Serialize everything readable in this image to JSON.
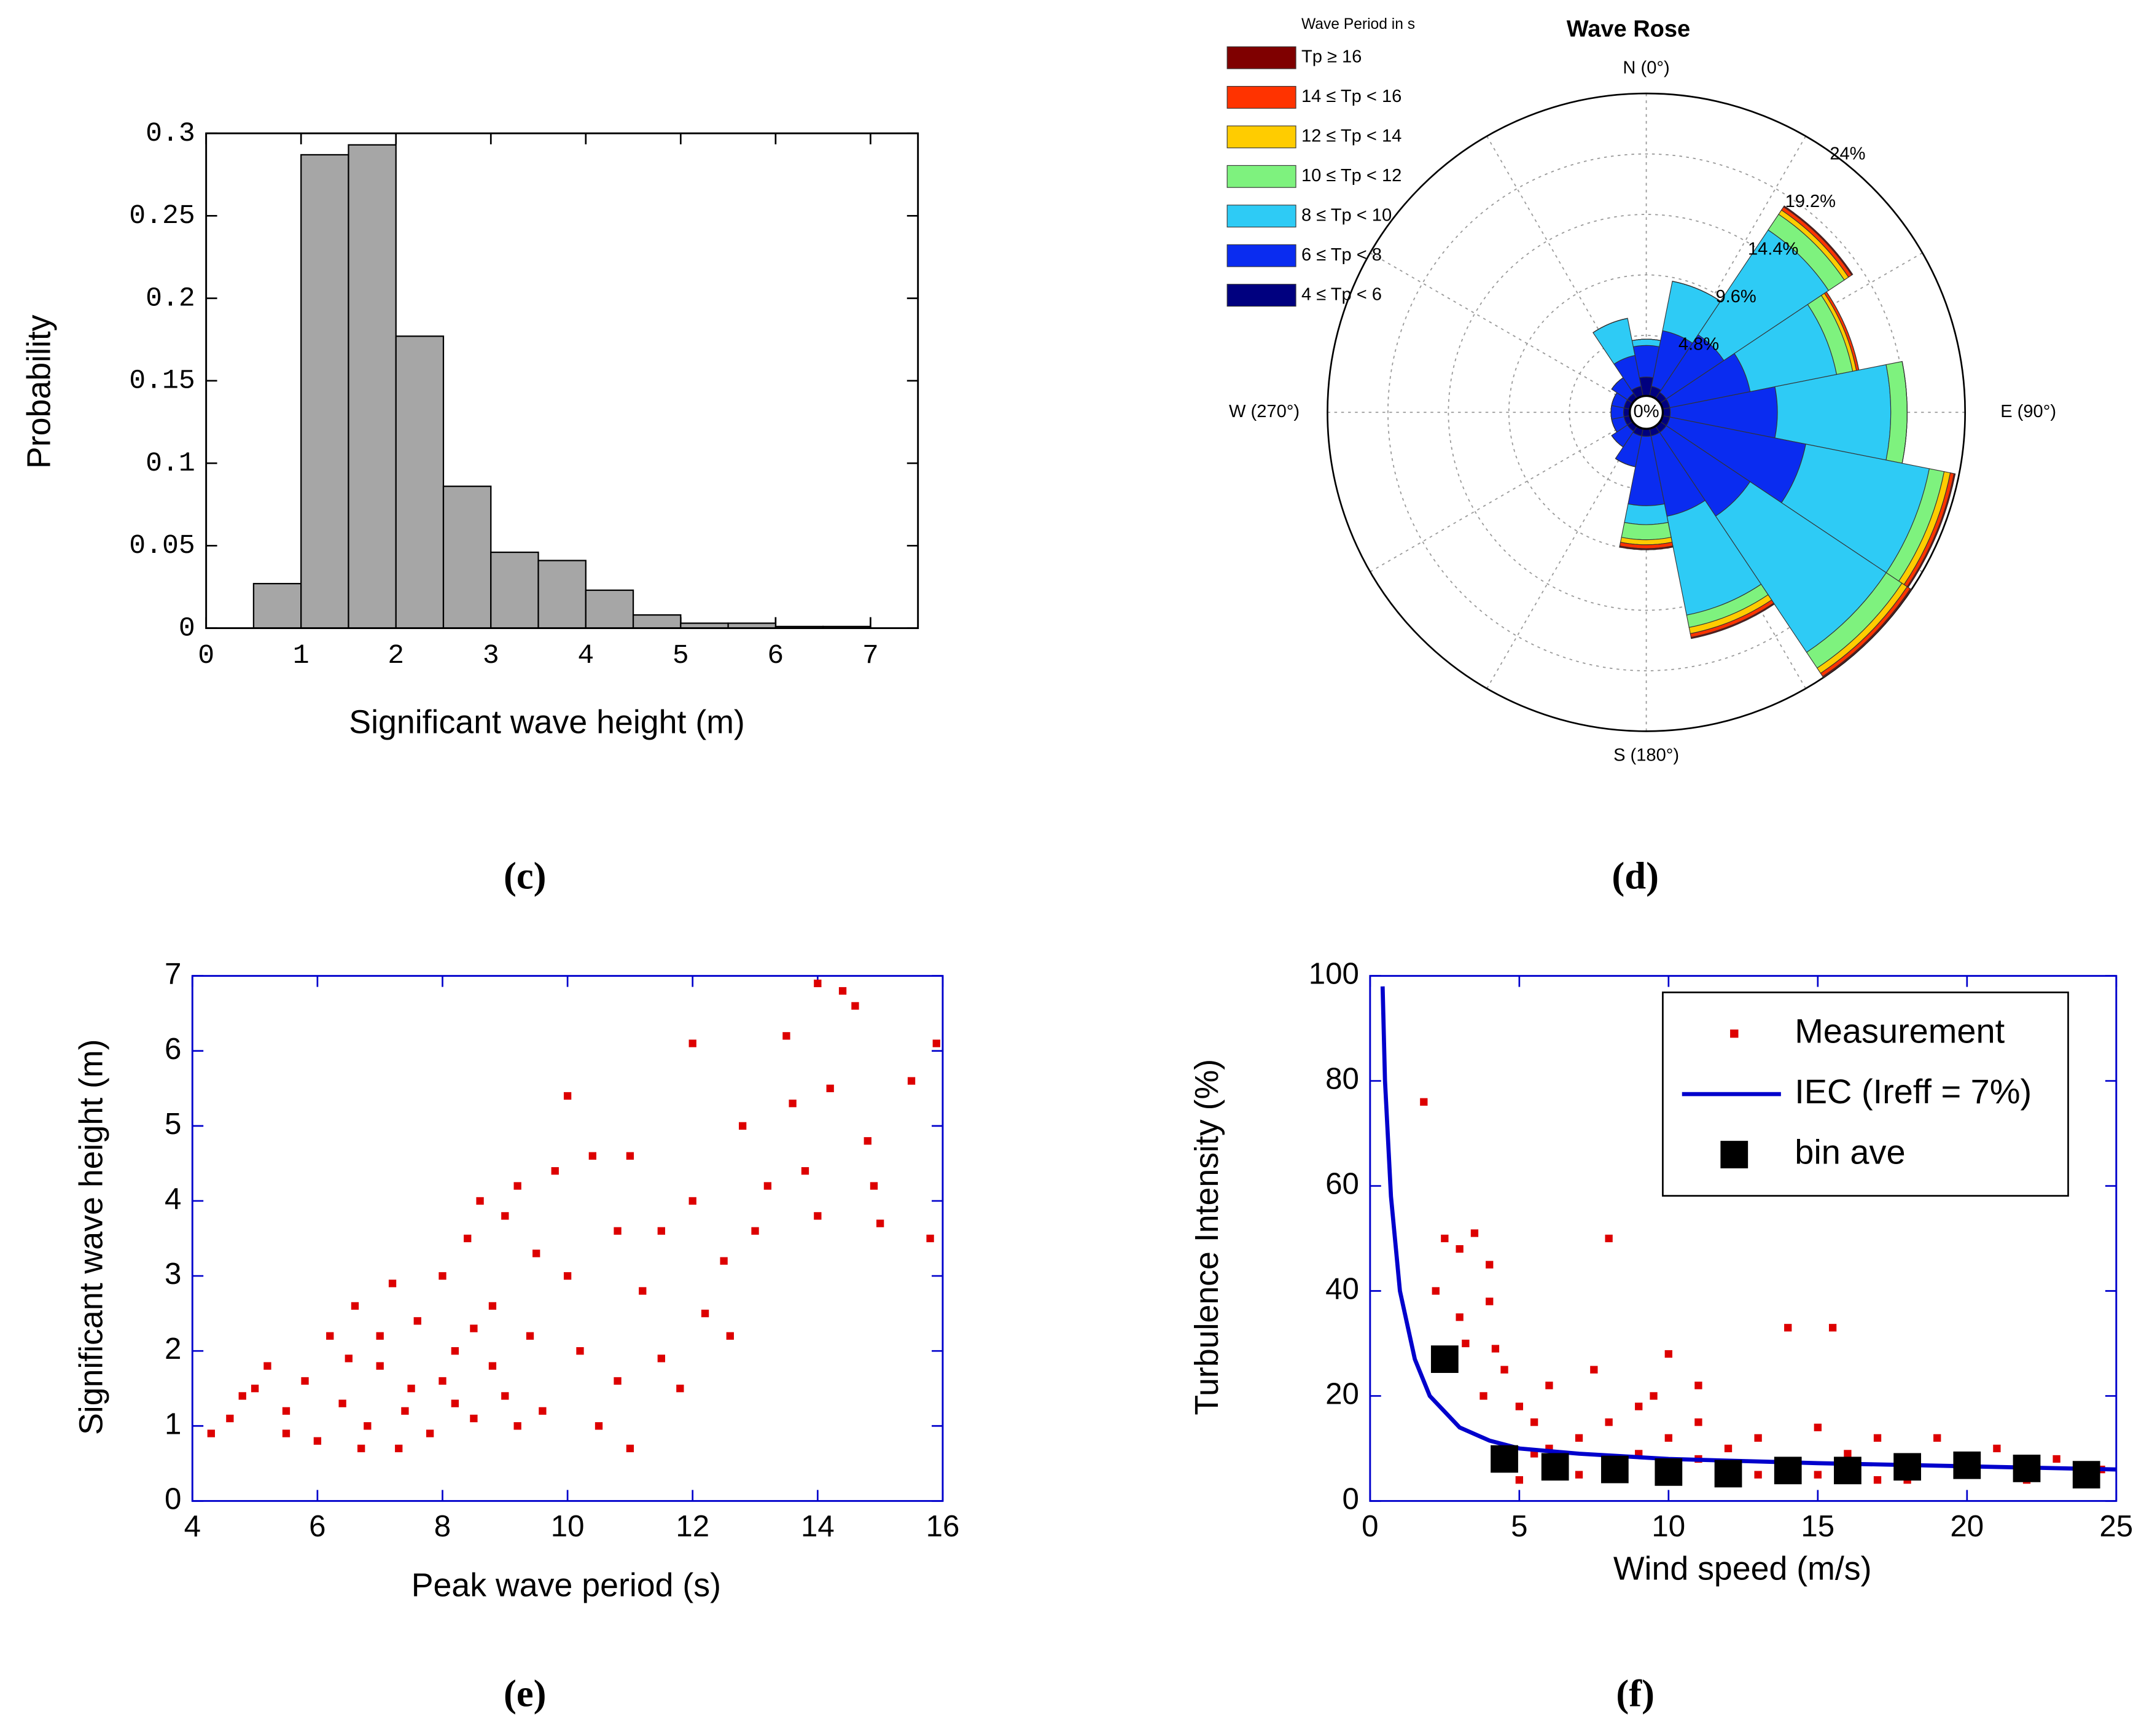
{
  "chart_data": [
    {
      "type": "histogram",
      "caption": "(c)",
      "x_label": "Significant wave height (m)",
      "y_label": "Probability",
      "bins": [
        0.5,
        1,
        1.5,
        2,
        2.5,
        3,
        3.5,
        4,
        4.5,
        5,
        5.5,
        6,
        6.5,
        7
      ],
      "values": [
        0.027,
        0.287,
        0.293,
        0.177,
        0.086,
        0.046,
        0.041,
        0.023,
        0.008,
        0.003,
        0.003,
        0.001,
        0.001
      ],
      "color": "#a6a6a6",
      "xlim": [
        0,
        7.5
      ],
      "ylim": [
        0,
        0.3
      ],
      "xticks": [
        0,
        1,
        2,
        3,
        4,
        5,
        6,
        7
      ],
      "yticks": [
        0,
        0.05,
        0.1,
        0.15,
        0.2,
        0.25,
        0.3
      ]
    },
    {
      "type": "polar_bar",
      "caption": "(d)",
      "title": "Wave Rose",
      "legend_title": "Wave Period in s",
      "directions": [
        0,
        22.5,
        45,
        67.5,
        90,
        112.5,
        135,
        157.5,
        180,
        202.5,
        225,
        247.5,
        270,
        292.5,
        315,
        337.5
      ],
      "rlim": [
        0,
        24
      ],
      "rticks": [
        {
          "value": 0,
          "label": "0%"
        },
        {
          "value": 4.8,
          "label": "4.8%"
        },
        {
          "value": 9.6,
          "label": "9.6%"
        },
        {
          "value": 14.4,
          "label": "14.4%"
        },
        {
          "value": 19.2,
          "label": "19.2%"
        },
        {
          "value": 24,
          "label": "24%"
        }
      ],
      "thetaticks": [
        {
          "value": 0,
          "label": "N (0°)"
        },
        {
          "value": 90,
          "label": "E (90°)"
        },
        {
          "value": 180,
          "label": "S (180°)"
        },
        {
          "value": 270,
          "label": "W (270°)"
        }
      ],
      "series": [
        {
          "name": "4 ≤ Tp < 6",
          "color": "#00007f",
          "values": [
            1.5,
            0.8,
            0.6,
            0.6,
            0.6,
            0.6,
            0.6,
            0.6,
            0.6,
            0.6,
            0.5,
            0.5,
            0.5,
            0.5,
            0.5,
            0.8
          ]
        },
        {
          "name": "6 ≤ Tp < 8",
          "color": "#0a2cf0",
          "values": [
            2.5,
            4.5,
            5.5,
            6.5,
            8.5,
            11,
            8,
            6.5,
            5.5,
            2.5,
            1.5,
            1,
            1,
            1,
            1.5,
            2.5
          ]
        },
        {
          "name": "8 ≤ Tp < 10",
          "color": "#2ecbf5",
          "values": [
            0.5,
            4,
            10,
            7,
            9,
            10,
            13,
            8,
            1.5,
            0,
            0,
            0,
            0,
            0,
            0,
            3
          ]
        },
        {
          "name": "10 ≤ Tp < 12",
          "color": "#7ef27e",
          "values": [
            0,
            0,
            1.5,
            1.3,
            1.3,
            1.2,
            1.5,
            1,
            1.2,
            0,
            0,
            0,
            0,
            0,
            0,
            0
          ]
        },
        {
          "name": "12 ≤ Tp < 14",
          "color": "#ffcc00",
          "values": [
            0,
            0,
            0.4,
            0.3,
            0,
            0.5,
            0.5,
            0.5,
            0.4,
            0,
            0,
            0,
            0,
            0,
            0,
            0
          ]
        },
        {
          "name": "14 ≤ Tp < 16",
          "color": "#ff3300",
          "values": [
            0,
            0,
            0.3,
            0.2,
            0,
            0.3,
            0.3,
            0.3,
            0.3,
            0,
            0,
            0,
            0,
            0,
            0,
            0
          ]
        },
        {
          "name": "Tp ≥ 16",
          "color": "#7f0000",
          "values": [
            0,
            0,
            0.1,
            0,
            0,
            0.1,
            0.1,
            0.1,
            0.1,
            0,
            0,
            0,
            0,
            0,
            0,
            0
          ]
        }
      ]
    },
    {
      "type": "scatter",
      "caption": "(e)",
      "x_label": "Peak wave period (s)",
      "y_label": "Significant wave height (m)",
      "xlim": [
        4,
        16
      ],
      "ylim": [
        0,
        7
      ],
      "xticks": [
        4,
        6,
        8,
        10,
        12,
        14,
        16
      ],
      "yticks": [
        0,
        1,
        2,
        3,
        4,
        5,
        6,
        7
      ],
      "series": [
        {
          "color": "#dd0000",
          "x": [
            4.3,
            4.6,
            5,
            5.2,
            5.5,
            5.8,
            6,
            6.2,
            6.4,
            6.6,
            6.8,
            7,
            7.2,
            7.4,
            7.6,
            7.8,
            8,
            8,
            8.2,
            8.4,
            8.5,
            8.6,
            8.8,
            9,
            9,
            9.2,
            9.4,
            9.6,
            9.8,
            10,
            10,
            10.2,
            10.4,
            10.5,
            10.8,
            11,
            11,
            11.2,
            11.5,
            11.8,
            12,
            12,
            12.2,
            12.5,
            12.8,
            13,
            13.2,
            13.5,
            13.6,
            13.8,
            14,
            14,
            14.2,
            14.4,
            14.6,
            14.8,
            14.9,
            15,
            15.5,
            15.8,
            15.9,
            4.8,
            5.5,
            6.5,
            7,
            7.5,
            8.2,
            8.8,
            9.5,
            7.3,
            6.7,
            8.5,
            9.2,
            10.8,
            11.5,
            12.6
          ],
          "values": [
            0.9,
            1.1,
            1.5,
            1.8,
            1.2,
            1.6,
            0.8,
            2.2,
            1.3,
            2.6,
            1,
            1.8,
            2.9,
            1.2,
            2.4,
            0.9,
            1.6,
            3,
            2,
            3.5,
            1.1,
            4,
            2.6,
            1.4,
            3.8,
            4.2,
            2.2,
            1.2,
            4.4,
            5.4,
            3,
            2,
            4.6,
            1,
            3.6,
            4.6,
            0.7,
            2.8,
            3.6,
            1.5,
            4,
            6.1,
            2.5,
            3.2,
            5,
            3.6,
            4.2,
            6.2,
            5.3,
            4.4,
            6.9,
            3.8,
            5.5,
            6.8,
            6.6,
            4.8,
            4.2,
            3.7,
            5.6,
            3.5,
            6.1,
            1.4,
            0.9,
            1.9,
            2.2,
            1.5,
            1.3,
            1.8,
            3.3,
            0.7,
            0.7,
            2.3,
            1,
            1.6,
            1.9,
            2.2
          ]
        }
      ]
    },
    {
      "type": "scatter",
      "caption": "(f)",
      "x_label": "Wind speed (m/s)",
      "y_label": "Turbulence Intensity (%)",
      "xlim": [
        0,
        25
      ],
      "ylim": [
        0,
        100
      ],
      "xticks": [
        0,
        5,
        10,
        15,
        20,
        25
      ],
      "yticks": [
        0,
        20,
        40,
        60,
        80,
        100
      ],
      "series": [
        {
          "name": "Measurement",
          "type": "scatter",
          "color": "#dd0000",
          "x": [
            1.8,
            2.5,
            3,
            3.5,
            4,
            4,
            3.2,
            3.8,
            4.5,
            5,
            5.5,
            6,
            6,
            7,
            7,
            8,
            8,
            9,
            9,
            10,
            10,
            11,
            11,
            12,
            12,
            13,
            14,
            14,
            15,
            15,
            16,
            17,
            17,
            18,
            19,
            20,
            21,
            22,
            23,
            24,
            24.5,
            5,
            6,
            8,
            10,
            12,
            16,
            20,
            4.5,
            5.5,
            13,
            18,
            22,
            3,
            4.2,
            11,
            2.2,
            7.5,
            9.5,
            15.5
          ],
          "values": [
            76,
            50,
            48,
            51,
            45,
            38,
            30,
            20,
            25,
            18,
            15,
            22,
            10,
            12,
            5,
            50,
            15,
            9,
            18,
            12,
            28,
            8,
            15,
            10,
            4,
            12,
            7,
            33,
            14,
            5,
            9,
            12,
            4,
            8,
            12,
            7,
            10,
            6,
            8,
            5,
            6,
            4,
            6,
            7,
            6,
            6,
            6,
            5,
            10,
            9,
            5,
            4,
            4,
            35,
            29,
            22,
            40,
            25,
            20,
            33
          ]
        },
        {
          "name": "IEC (Ireff = 7%)",
          "type": "line",
          "color": "#0000cc",
          "x": [
            0.42,
            0.5,
            0.7,
            1,
            1.5,
            2,
            3,
            4,
            5,
            7,
            10,
            15,
            20,
            25
          ],
          "values": [
            98,
            80,
            58,
            40,
            27,
            20,
            14,
            11.5,
            10,
            9,
            8,
            7.2,
            6.6,
            6
          ]
        },
        {
          "name": "bin ave",
          "type": "scatter",
          "color": "#000000",
          "x": [
            2.5,
            4.5,
            6.2,
            8.2,
            10,
            12,
            14,
            16,
            18,
            20,
            22,
            24
          ],
          "values": [
            27,
            8,
            6.5,
            6,
            5.5,
            5.2,
            5.8,
            5.8,
            6.5,
            6.8,
            6.2,
            5
          ]
        }
      ]
    }
  ]
}
